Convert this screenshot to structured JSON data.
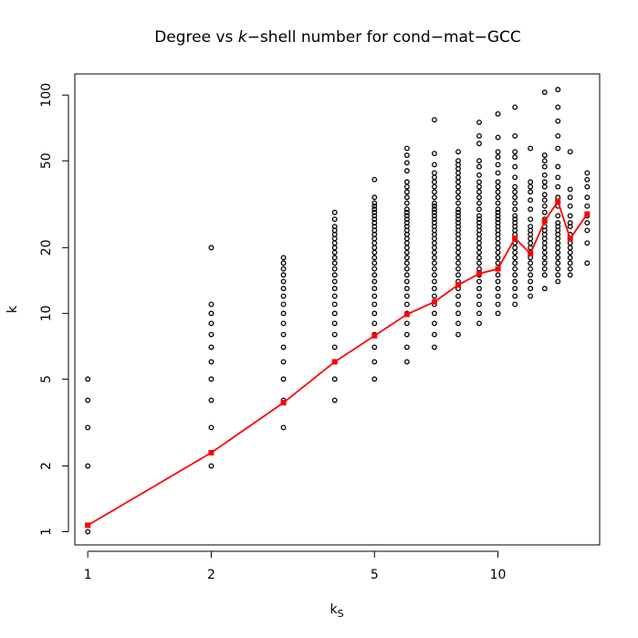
{
  "chart_data": {
    "type": "scatter",
    "title_prefix": "Degree vs ",
    "title_italic": "k",
    "title_suffix": "−shell number for cond−mat−GCC",
    "xlabel_main": "k",
    "xlabel_sub": "S",
    "ylabel": "k",
    "x_scale": "log",
    "y_scale": "log",
    "xlim": [
      0.93,
      17.7
    ],
    "ylim": [
      0.87,
      125
    ],
    "x_ticks": [
      1,
      2,
      5,
      10
    ],
    "x_tick_labels": [
      "1",
      "2",
      "5",
      "10"
    ],
    "y_ticks": [
      1,
      2,
      5,
      10,
      20,
      50,
      100
    ],
    "y_tick_labels": [
      "1",
      "2",
      "5",
      "10",
      "20",
      "50",
      "100"
    ],
    "grid": false,
    "legend": "none",
    "scatter_color": "#000000",
    "line_color": "#ff0000",
    "scatter": [
      {
        "x": 1,
        "y": [
          1,
          2,
          3,
          4,
          5
        ]
      },
      {
        "x": 2,
        "y": [
          2,
          3,
          4,
          5,
          6,
          7,
          8,
          9,
          10,
          11,
          20
        ]
      },
      {
        "x": 3,
        "y": [
          3,
          4,
          5,
          6,
          7,
          8,
          9,
          10,
          11,
          12,
          13,
          14,
          15,
          16,
          17,
          18
        ]
      },
      {
        "x": 4,
        "y": [
          4,
          5,
          6,
          7,
          8,
          9,
          10,
          11,
          12,
          13,
          14,
          15,
          16,
          17,
          18,
          19,
          20,
          21,
          22,
          23,
          24,
          25,
          27,
          29
        ]
      },
      {
        "x": 5,
        "y": [
          5,
          6,
          7,
          8,
          9,
          10,
          11,
          12,
          13,
          14,
          15,
          16,
          17,
          18,
          19,
          20,
          21,
          22,
          23,
          24,
          25,
          26,
          27,
          28,
          29,
          30,
          31,
          32,
          34,
          41
        ]
      },
      {
        "x": 6,
        "y": [
          6,
          7,
          8,
          9,
          10,
          11,
          12,
          13,
          14,
          15,
          16,
          17,
          18,
          19,
          20,
          21,
          22,
          23,
          24,
          25,
          26,
          27,
          28,
          29,
          30,
          32,
          34,
          36,
          38,
          40,
          45,
          49,
          53,
          57
        ]
      },
      {
        "x": 7,
        "y": [
          7,
          8,
          9,
          10,
          11,
          12,
          13,
          14,
          15,
          16,
          17,
          18,
          19,
          20,
          21,
          22,
          23,
          24,
          25,
          26,
          27,
          28,
          29,
          30,
          31,
          32,
          34,
          36,
          38,
          40,
          42,
          44,
          48,
          54,
          77
        ]
      },
      {
        "x": 8,
        "y": [
          8,
          9,
          10,
          11,
          12,
          13,
          14,
          15,
          16,
          17,
          18,
          19,
          20,
          21,
          22,
          23,
          24,
          25,
          26,
          27,
          28,
          29,
          30,
          32,
          34,
          36,
          38,
          40,
          42,
          44,
          46,
          48,
          50,
          55
        ]
      },
      {
        "x": 9,
        "y": [
          9,
          10,
          11,
          12,
          13,
          14,
          15,
          16,
          17,
          18,
          19,
          20,
          21,
          22,
          23,
          24,
          25,
          26,
          27,
          28,
          30,
          32,
          34,
          36,
          38,
          40,
          43,
          47,
          50,
          60,
          65,
          75
        ]
      },
      {
        "x": 10,
        "y": [
          10,
          11,
          12,
          13,
          14,
          15,
          16,
          17,
          18,
          19,
          20,
          21,
          22,
          23,
          24,
          25,
          26,
          27,
          28,
          29,
          30,
          32,
          34,
          36,
          38,
          40,
          44,
          48,
          52,
          55,
          64,
          82
        ]
      },
      {
        "x": 11,
        "y": [
          11,
          12,
          13,
          14,
          15,
          16,
          17,
          18,
          19,
          20,
          21,
          22,
          23,
          24,
          25,
          26,
          27,
          28,
          30,
          32,
          34,
          36,
          38,
          42,
          47,
          52,
          55,
          65,
          88
        ]
      },
      {
        "x": 12,
        "y": [
          12,
          13,
          14,
          15,
          16,
          17,
          18,
          19,
          20,
          21,
          22,
          23,
          24,
          25,
          27,
          30,
          33,
          36,
          38,
          40,
          57
        ]
      },
      {
        "x": 13,
        "y": [
          13,
          15,
          16,
          17,
          18,
          19,
          20,
          21,
          22,
          23,
          24,
          25,
          27,
          29,
          31,
          33,
          35,
          38,
          40,
          43,
          47,
          50,
          53,
          103
        ]
      },
      {
        "x": 14,
        "y": [
          14,
          15,
          16,
          17,
          18,
          19,
          20,
          21,
          22,
          23,
          24,
          25,
          26,
          28,
          31,
          34,
          38,
          42,
          47,
          57,
          65,
          76,
          88,
          106
        ]
      },
      {
        "x": 15,
        "y": [
          15,
          16,
          17,
          18,
          19,
          20,
          21,
          22,
          23,
          25,
          26,
          28,
          31,
          34,
          37,
          55
        ]
      },
      {
        "x": 16.5,
        "y": [
          17,
          21,
          24,
          26,
          28,
          31,
          34,
          38,
          41,
          44
        ]
      }
    ],
    "mean_line": {
      "x": [
        1,
        2,
        3,
        4,
        5,
        6,
        7,
        8,
        9,
        10,
        11,
        12,
        13,
        14,
        15,
        16.5
      ],
      "y": [
        1.07,
        2.3,
        3.9,
        6.0,
        7.9,
        9.9,
        11.3,
        13.5,
        15.2,
        16.0,
        22.1,
        18.8,
        26.5,
        32.6,
        22.0,
        28.5
      ]
    }
  }
}
